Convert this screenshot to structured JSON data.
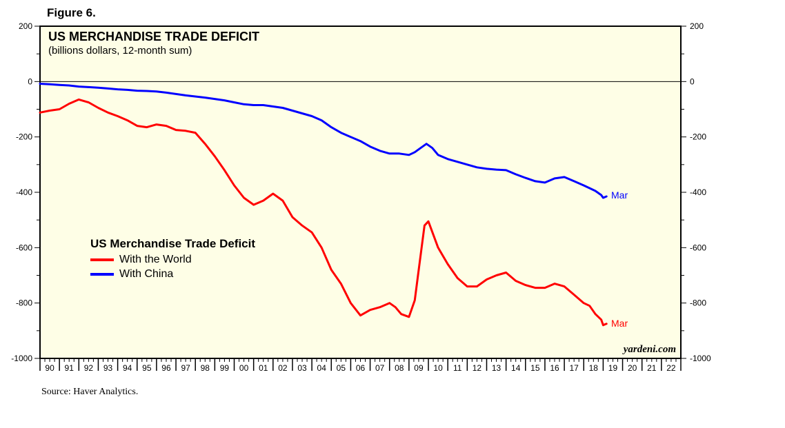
{
  "figure_label": "Figure 6.",
  "source": "Source: Haver Analytics.",
  "watermark": "yardeni.com",
  "colors": {
    "plot_bg": "#fefee6",
    "world": "#ff0000",
    "china": "#0000ff",
    "end_label_world": "#ff0000",
    "end_label_china": "#0000ff"
  },
  "chart_data": {
    "type": "line",
    "title": "US MERCHANDISE TRADE DEFICIT",
    "subtitle": "(billions dollars, 12-month sum)",
    "legend_title": "US Merchandise Trade Deficit",
    "ylim": [
      -1000,
      200
    ],
    "xlim": [
      1990,
      2023
    ],
    "y_ticks": [
      200,
      0,
      -200,
      -400,
      -600,
      -800,
      -1000
    ],
    "y_tick_labels": [
      "200",
      "0",
      "-200",
      "-400",
      "-600",
      "-800",
      "-1000"
    ],
    "x_tick_labels": [
      "90",
      "91",
      "92",
      "93",
      "94",
      "95",
      "96",
      "97",
      "98",
      "99",
      "00",
      "01",
      "02",
      "03",
      "04",
      "05",
      "06",
      "07",
      "08",
      "09",
      "10",
      "11",
      "12",
      "13",
      "14",
      "15",
      "16",
      "17",
      "18",
      "19",
      "20",
      "21",
      "22"
    ],
    "series": [
      {
        "name": "With the World",
        "end_label": "Mar",
        "x": [
          1990.0,
          1990.5,
          1991.0,
          1991.5,
          1992.0,
          1992.5,
          1993.0,
          1993.5,
          1994.0,
          1994.5,
          1995.0,
          1995.5,
          1996.0,
          1996.5,
          1997.0,
          1997.5,
          1998.0,
          1998.5,
          1999.0,
          1999.5,
          2000.0,
          2000.5,
          2001.0,
          2001.5,
          2002.0,
          2002.5,
          2003.0,
          2003.5,
          2004.0,
          2004.5,
          2005.0,
          2005.5,
          2006.0,
          2006.5,
          2007.0,
          2007.5,
          2008.0,
          2008.3,
          2008.6,
          2009.0,
          2009.3,
          2009.5,
          2009.8,
          2010.0,
          2010.5,
          2011.0,
          2011.5,
          2012.0,
          2012.5,
          2013.0,
          2013.5,
          2014.0,
          2014.5,
          2015.0,
          2015.5,
          2016.0,
          2016.5,
          2017.0,
          2017.5,
          2018.0,
          2018.3,
          2018.6,
          2018.9,
          2019.0,
          2019.17
        ],
        "values": [
          -112,
          -105,
          -100,
          -80,
          -65,
          -75,
          -95,
          -112,
          -125,
          -140,
          -160,
          -165,
          -155,
          -160,
          -175,
          -178,
          -185,
          -225,
          -270,
          -320,
          -375,
          -420,
          -445,
          -430,
          -405,
          -430,
          -490,
          -520,
          -545,
          -600,
          -680,
          -730,
          -800,
          -845,
          -825,
          -815,
          -800,
          -815,
          -840,
          -850,
          -790,
          -680,
          -520,
          -505,
          -600,
          -660,
          -710,
          -740,
          -740,
          -715,
          -700,
          -690,
          -720,
          -735,
          -745,
          -745,
          -730,
          -740,
          -770,
          -800,
          -810,
          -840,
          -860,
          -880,
          -875
        ]
      },
      {
        "name": "With China",
        "end_label": "Mar",
        "x": [
          1990.0,
          1990.5,
          1991.0,
          1991.5,
          1992.0,
          1992.5,
          1993.0,
          1993.5,
          1994.0,
          1994.5,
          1995.0,
          1995.5,
          1996.0,
          1996.5,
          1997.0,
          1997.5,
          1998.0,
          1998.5,
          1999.0,
          1999.5,
          2000.0,
          2000.5,
          2001.0,
          2001.5,
          2002.0,
          2002.5,
          2003.0,
          2003.5,
          2004.0,
          2004.5,
          2005.0,
          2005.5,
          2006.0,
          2006.5,
          2007.0,
          2007.5,
          2008.0,
          2008.5,
          2009.0,
          2009.3,
          2009.6,
          2009.9,
          2010.2,
          2010.5,
          2011.0,
          2011.5,
          2012.0,
          2012.5,
          2013.0,
          2013.5,
          2014.0,
          2014.5,
          2015.0,
          2015.5,
          2016.0,
          2016.5,
          2017.0,
          2017.5,
          2018.0,
          2018.3,
          2018.6,
          2018.9,
          2019.0,
          2019.17
        ],
        "values": [
          -8,
          -10,
          -12,
          -14,
          -18,
          -20,
          -22,
          -25,
          -28,
          -30,
          -33,
          -34,
          -36,
          -40,
          -45,
          -50,
          -54,
          -58,
          -63,
          -68,
          -75,
          -82,
          -85,
          -85,
          -90,
          -95,
          -105,
          -115,
          -125,
          -140,
          -165,
          -185,
          -200,
          -215,
          -235,
          -250,
          -260,
          -260,
          -265,
          -255,
          -240,
          -225,
          -240,
          -265,
          -280,
          -290,
          -300,
          -310,
          -315,
          -318,
          -320,
          -335,
          -348,
          -360,
          -365,
          -350,
          -345,
          -360,
          -375,
          -385,
          -395,
          -410,
          -420,
          -415
        ]
      }
    ]
  }
}
